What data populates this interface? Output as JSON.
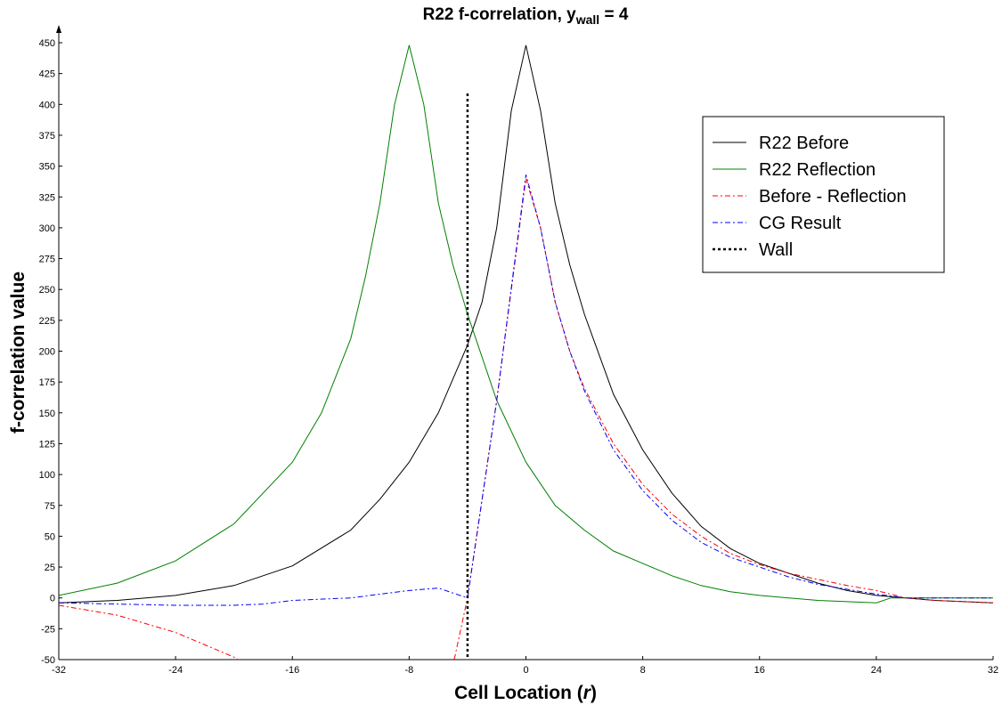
{
  "chart_data": {
    "type": "line",
    "title": "R22 f-correlation, y",
    "title_sub": "wall",
    "title_suffix": " = 4",
    "xlabel": "Cell Location (",
    "xlabel_var": "r",
    "xlabel_end": ")",
    "ylabel": "f-correlation value",
    "xlim": [
      -32,
      32
    ],
    "ylim": [
      -50,
      450
    ],
    "x_ticks": [
      -32,
      -24,
      -16,
      -8,
      0,
      8,
      16,
      24,
      32
    ],
    "y_ticks": [
      -50,
      -25,
      0,
      25,
      50,
      75,
      100,
      125,
      150,
      175,
      200,
      225,
      250,
      275,
      300,
      325,
      350,
      375,
      400,
      425,
      450
    ],
    "grid": false,
    "legend_position": "top-right",
    "wall_x": -4,
    "series": [
      {
        "name": "R22 Before",
        "color": "#000000",
        "dash": "none",
        "points": [
          [
            -32,
            -4
          ],
          [
            -28,
            -2
          ],
          [
            -24,
            2
          ],
          [
            -20,
            10
          ],
          [
            -16,
            26
          ],
          [
            -12,
            55
          ],
          [
            -10,
            80
          ],
          [
            -8,
            110
          ],
          [
            -6,
            150
          ],
          [
            -4,
            205
          ],
          [
            -3,
            240
          ],
          [
            -2,
            300
          ],
          [
            -1,
            395
          ],
          [
            0,
            448
          ],
          [
            1,
            395
          ],
          [
            2,
            320
          ],
          [
            3,
            270
          ],
          [
            4,
            230
          ],
          [
            6,
            165
          ],
          [
            8,
            120
          ],
          [
            10,
            85
          ],
          [
            12,
            58
          ],
          [
            14,
            40
          ],
          [
            16,
            28
          ],
          [
            18,
            20
          ],
          [
            20,
            12
          ],
          [
            22,
            6
          ],
          [
            24,
            2
          ],
          [
            26,
            0
          ],
          [
            28,
            -2
          ],
          [
            30,
            -3
          ],
          [
            32,
            -4
          ]
        ]
      },
      {
        "name": "R22 Reflection",
        "color": "#008000",
        "dash": "none",
        "points": [
          [
            -32,
            2
          ],
          [
            -28,
            12
          ],
          [
            -24,
            30
          ],
          [
            -20,
            60
          ],
          [
            -16,
            110
          ],
          [
            -14,
            150
          ],
          [
            -12,
            210
          ],
          [
            -11,
            260
          ],
          [
            -10,
            320
          ],
          [
            -9,
            400
          ],
          [
            -8,
            448
          ],
          [
            -7,
            400
          ],
          [
            -6,
            320
          ],
          [
            -5,
            270
          ],
          [
            -4,
            230
          ],
          [
            -2,
            160
          ],
          [
            0,
            110
          ],
          [
            2,
            75
          ],
          [
            4,
            55
          ],
          [
            6,
            38
          ],
          [
            8,
            28
          ],
          [
            10,
            18
          ],
          [
            12,
            10
          ],
          [
            14,
            5
          ],
          [
            16,
            2
          ],
          [
            18,
            0
          ],
          [
            20,
            -2
          ],
          [
            22,
            -3
          ],
          [
            24,
            -4
          ],
          [
            25,
            0
          ],
          [
            26,
            0
          ],
          [
            28,
            0
          ],
          [
            30,
            0
          ],
          [
            32,
            0
          ]
        ]
      },
      {
        "name": "Before - Reflection",
        "color": "#ff0000",
        "dash": "6,3,2,3",
        "points": [
          [
            -32,
            -6
          ],
          [
            -28,
            -14
          ],
          [
            -24,
            -28
          ],
          [
            -20,
            -48
          ],
          [
            -19,
            -55
          ],
          [
            -5,
            -55
          ],
          [
            -4,
            0
          ],
          [
            -2,
            160
          ],
          [
            0,
            340
          ],
          [
            1,
            300
          ],
          [
            2,
            240
          ],
          [
            3,
            200
          ],
          [
            4,
            170
          ],
          [
            6,
            125
          ],
          [
            8,
            92
          ],
          [
            10,
            68
          ],
          [
            12,
            50
          ],
          [
            14,
            36
          ],
          [
            16,
            27
          ],
          [
            18,
            20
          ],
          [
            20,
            15
          ],
          [
            22,
            10
          ],
          [
            24,
            6
          ],
          [
            26,
            0
          ],
          [
            28,
            -2
          ],
          [
            30,
            -3
          ],
          [
            32,
            -4
          ]
        ]
      },
      {
        "name": "CG Result",
        "color": "#0000ff",
        "dash": "6,3,2,3",
        "points": [
          [
            -32,
            -4
          ],
          [
            -28,
            -5
          ],
          [
            -24,
            -6
          ],
          [
            -20,
            -6
          ],
          [
            -18,
            -5
          ],
          [
            -16,
            -2
          ],
          [
            -12,
            0
          ],
          [
            -10,
            3
          ],
          [
            -8,
            6
          ],
          [
            -6,
            8
          ],
          [
            -5,
            4
          ],
          [
            -4,
            0
          ],
          [
            -2,
            160
          ],
          [
            0,
            343
          ],
          [
            1,
            300
          ],
          [
            2,
            240
          ],
          [
            3,
            200
          ],
          [
            4,
            168
          ],
          [
            6,
            120
          ],
          [
            8,
            87
          ],
          [
            10,
            63
          ],
          [
            12,
            45
          ],
          [
            14,
            33
          ],
          [
            16,
            25
          ],
          [
            18,
            17
          ],
          [
            20,
            11
          ],
          [
            22,
            7
          ],
          [
            24,
            3
          ],
          [
            26,
            0
          ],
          [
            28,
            0
          ],
          [
            30,
            0
          ],
          [
            32,
            0
          ]
        ]
      }
    ],
    "legend": [
      {
        "label": "R22 Before",
        "color": "#000000",
        "dash": "none"
      },
      {
        "label": "R22 Reflection",
        "color": "#008000",
        "dash": "none"
      },
      {
        "label": "Before - Reflection",
        "color": "#ff0000",
        "dash": "6,3,2,3"
      },
      {
        "label": "CG Result",
        "color": "#0000ff",
        "dash": "6,3,2,3"
      },
      {
        "label": "Wall",
        "color": "#000000",
        "dash": "3,3"
      }
    ]
  }
}
